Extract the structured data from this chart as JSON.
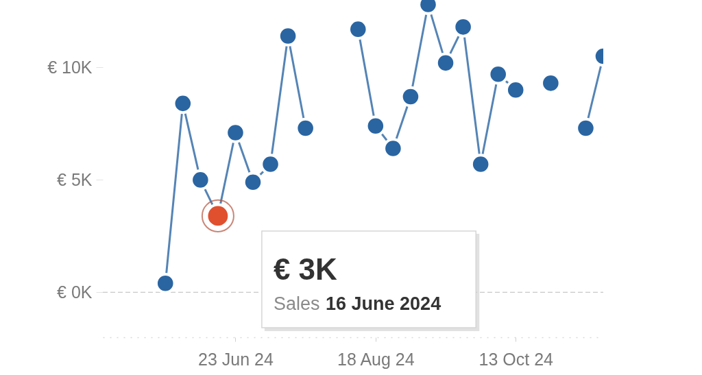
{
  "chart_data": {
    "type": "line",
    "x": [
      "2024-05-26",
      "2024-06-02",
      "2024-06-09",
      "2024-06-16",
      "2024-06-23",
      "2024-06-30",
      "2024-07-07",
      "2024-07-14",
      "2024-07-21",
      "2024-07-28",
      "2024-08-04",
      "2024-08-11",
      "2024-08-18",
      "2024-08-25",
      "2024-09-01",
      "2024-09-08",
      "2024-09-15",
      "2024-09-22",
      "2024-09-29",
      "2024-10-06",
      "2024-10-13",
      "2024-10-20",
      "2024-10-27",
      "2024-11-03",
      "2024-11-10",
      "2024-11-17"
    ],
    "series": [
      {
        "color": "#2a65a2",
        "colors": [
          "#2a65a2",
          "#2a65a2",
          "#2a65a2",
          "#e0502f",
          "#2a65a2",
          "#2a65a2",
          "#2a65a2",
          "#2a65a2",
          "#2a65a2",
          "#2a65a2",
          "#2a65a2",
          "#2a65a2",
          "#2a65a2",
          "#2a65a2",
          "#2a65a2",
          "#2a65a2",
          "#2a65a2",
          "#2a65a2",
          "#2a65a2",
          "#2a65a2",
          "#2a65a2",
          "#2a65a2",
          "#2a65a2",
          "#2a65a2",
          "#2a65a2",
          "#2a65a2"
        ],
        "values": [
          0.4,
          8.4,
          5.0,
          3.4,
          7.1,
          4.9,
          5.7,
          11.4,
          7.3,
          null,
          null,
          11.7,
          7.4,
          6.4,
          8.7,
          12.8,
          10.2,
          11.8,
          5.7,
          9.7,
          9.0,
          null,
          9.3,
          null,
          7.3,
          10.5
        ]
      }
    ],
    "xlim": [
      "2024-05-01",
      "2024-11-17"
    ],
    "xticks": [
      {
        "value": "2024-06-23",
        "label": "23 Jun 24"
      },
      {
        "value": "2024-08-18",
        "label": "18 Aug 24"
      },
      {
        "value": "2024-10-13",
        "label": "13 Oct 24"
      }
    ],
    "ylim": [
      -2,
      13
    ],
    "yticks": [
      {
        "value": 0,
        "label": "€ 0K"
      },
      {
        "value": 5,
        "label": "€ 5K"
      },
      {
        "value": 10,
        "label": "€ 10K"
      }
    ],
    "ref_lines": [
      {
        "axis": "y",
        "value": 0,
        "color": "#c8c8c8",
        "line_style": "dashed"
      }
    ],
    "annotations": [
      {
        "text": "€ 3K",
        "x": "2024-06-16",
        "y": 3.4
      },
      "Sales 16 June 2024"
    ],
    "marker": "circle",
    "line_style": "solid"
  }
}
